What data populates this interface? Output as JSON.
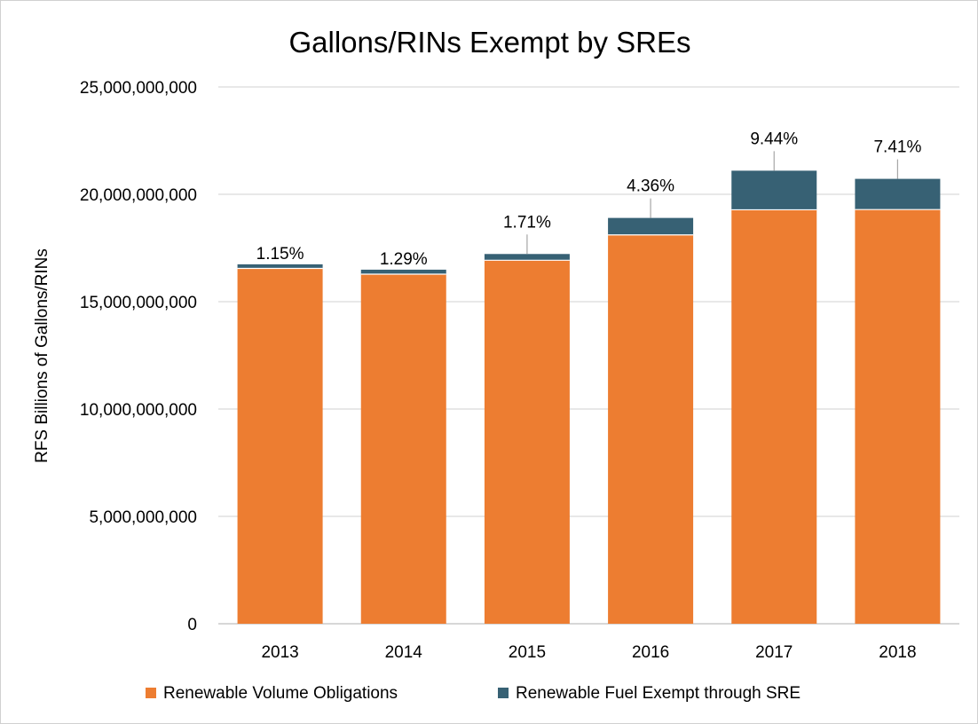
{
  "chart_data": {
    "type": "bar",
    "stacked": true,
    "title": "Gallons/RINs Exempt by SREs",
    "xlabel": "",
    "ylabel": "RFS Billions of Gallons/RINs",
    "categories": [
      "2013",
      "2014",
      "2015",
      "2016",
      "2017",
      "2018"
    ],
    "series": [
      {
        "name": "Renewable Volume Obligations",
        "color": "#ED7D31",
        "values": [
          16550000000,
          16280000000,
          16930000000,
          18110000000,
          19280000000,
          19290000000
        ]
      },
      {
        "name": "Renewable Fuel Exempt through SRE",
        "color": "#376174",
        "values": [
          190000000,
          210000000,
          290000000,
          790000000,
          1820000000,
          1430000000
        ]
      }
    ],
    "data_labels": [
      "1.15%",
      "1.29%",
      "1.71%",
      "4.36%",
      "9.44%",
      "7.41%"
    ],
    "ylim": [
      0,
      25000000000
    ],
    "yticks": [
      0,
      5000000000,
      10000000000,
      15000000000,
      20000000000,
      25000000000
    ],
    "ytick_labels": [
      "0",
      "5,000,000,000",
      "10,000,000,000",
      "15,000,000,000",
      "20,000,000,000",
      "25,000,000,000"
    ],
    "grid": true,
    "legend_position": "bottom"
  }
}
